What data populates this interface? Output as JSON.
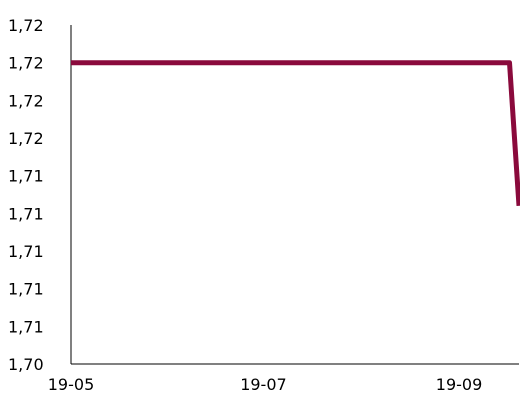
{
  "chart_data": {
    "type": "line",
    "title": "",
    "xlabel": "",
    "ylabel": "",
    "x_tick_labels": [
      "19-05",
      "19-07",
      "19-09"
    ],
    "y_tick_labels": [
      "1,70",
      "1,71",
      "1,71",
      "1,71",
      "1,71",
      "1,71",
      "1,72",
      "1,72",
      "1,72",
      "1,72"
    ],
    "x_domain": [
      "2019-05-01",
      "2019-09-20"
    ],
    "ylim": [
      1.7,
      1.7225
    ],
    "grid": false,
    "series": [
      {
        "color": "#8a0a3c",
        "points": [
          {
            "x": "2019-05-01",
            "y": 1.72
          },
          {
            "x": "2019-09-17",
            "y": 1.72
          },
          {
            "x": "2019-09-20",
            "y": 1.7105
          }
        ]
      }
    ]
  }
}
